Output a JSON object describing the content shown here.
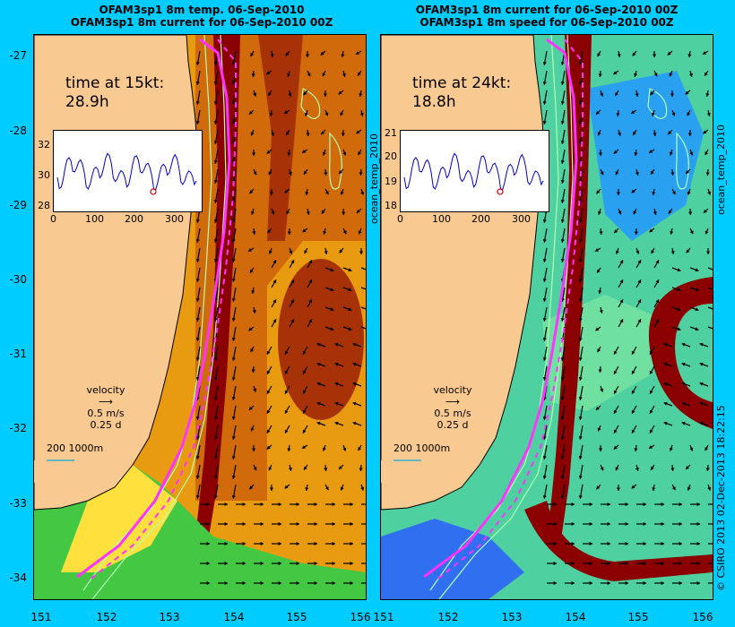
{
  "left_panel": {
    "title_line1": "OFAM3sp1 8m temp. 06-Sep-2010",
    "title_line2": "OFAM3sp1 8m current for 06-Sep-2010 00Z",
    "time_label": "time at 15kt:",
    "time_value": "28.9h",
    "inset_y_ticks": [
      "32",
      "30",
      "28"
    ],
    "inset_x_ticks": [
      "0",
      "100",
      "200",
      "300"
    ],
    "side_label": ""
  },
  "right_panel": {
    "title_line1": "OFAM3sp1 8m current for 06-Sep-2010 00Z",
    "title_line2": "OFAM3sp1 8m speed for 06-Sep-2010 00Z",
    "time_label": "time at 24kt:",
    "time_value": "18.8h",
    "inset_y_ticks": [
      "21",
      "20",
      "19",
      "18"
    ],
    "inset_x_ticks": [
      "0",
      "100",
      "200",
      "300"
    ],
    "side_label": "ocean_temp_2010"
  },
  "between_label": "ocean_temp_2010",
  "credit": "© CSIRO 2013  02-Dec-2013 18:22:15",
  "velocity_legend": {
    "title": "velocity",
    "speed": "0.5 m/s",
    "duration": "0.25 d"
  },
  "depth_legend": "200  1000m",
  "y_ticks": [
    "-27",
    "-28",
    "-29",
    "-30",
    "-31",
    "-32",
    "-33",
    "-34"
  ],
  "x_ticks": [
    "151",
    "152",
    "153",
    "154",
    "155",
    "156"
  ],
  "colors": {
    "background": "#00ccff",
    "land": "#f9c992",
    "warm_core": "#8b0000",
    "route": "#ff33ff",
    "contour": "#b0ffb0"
  }
}
